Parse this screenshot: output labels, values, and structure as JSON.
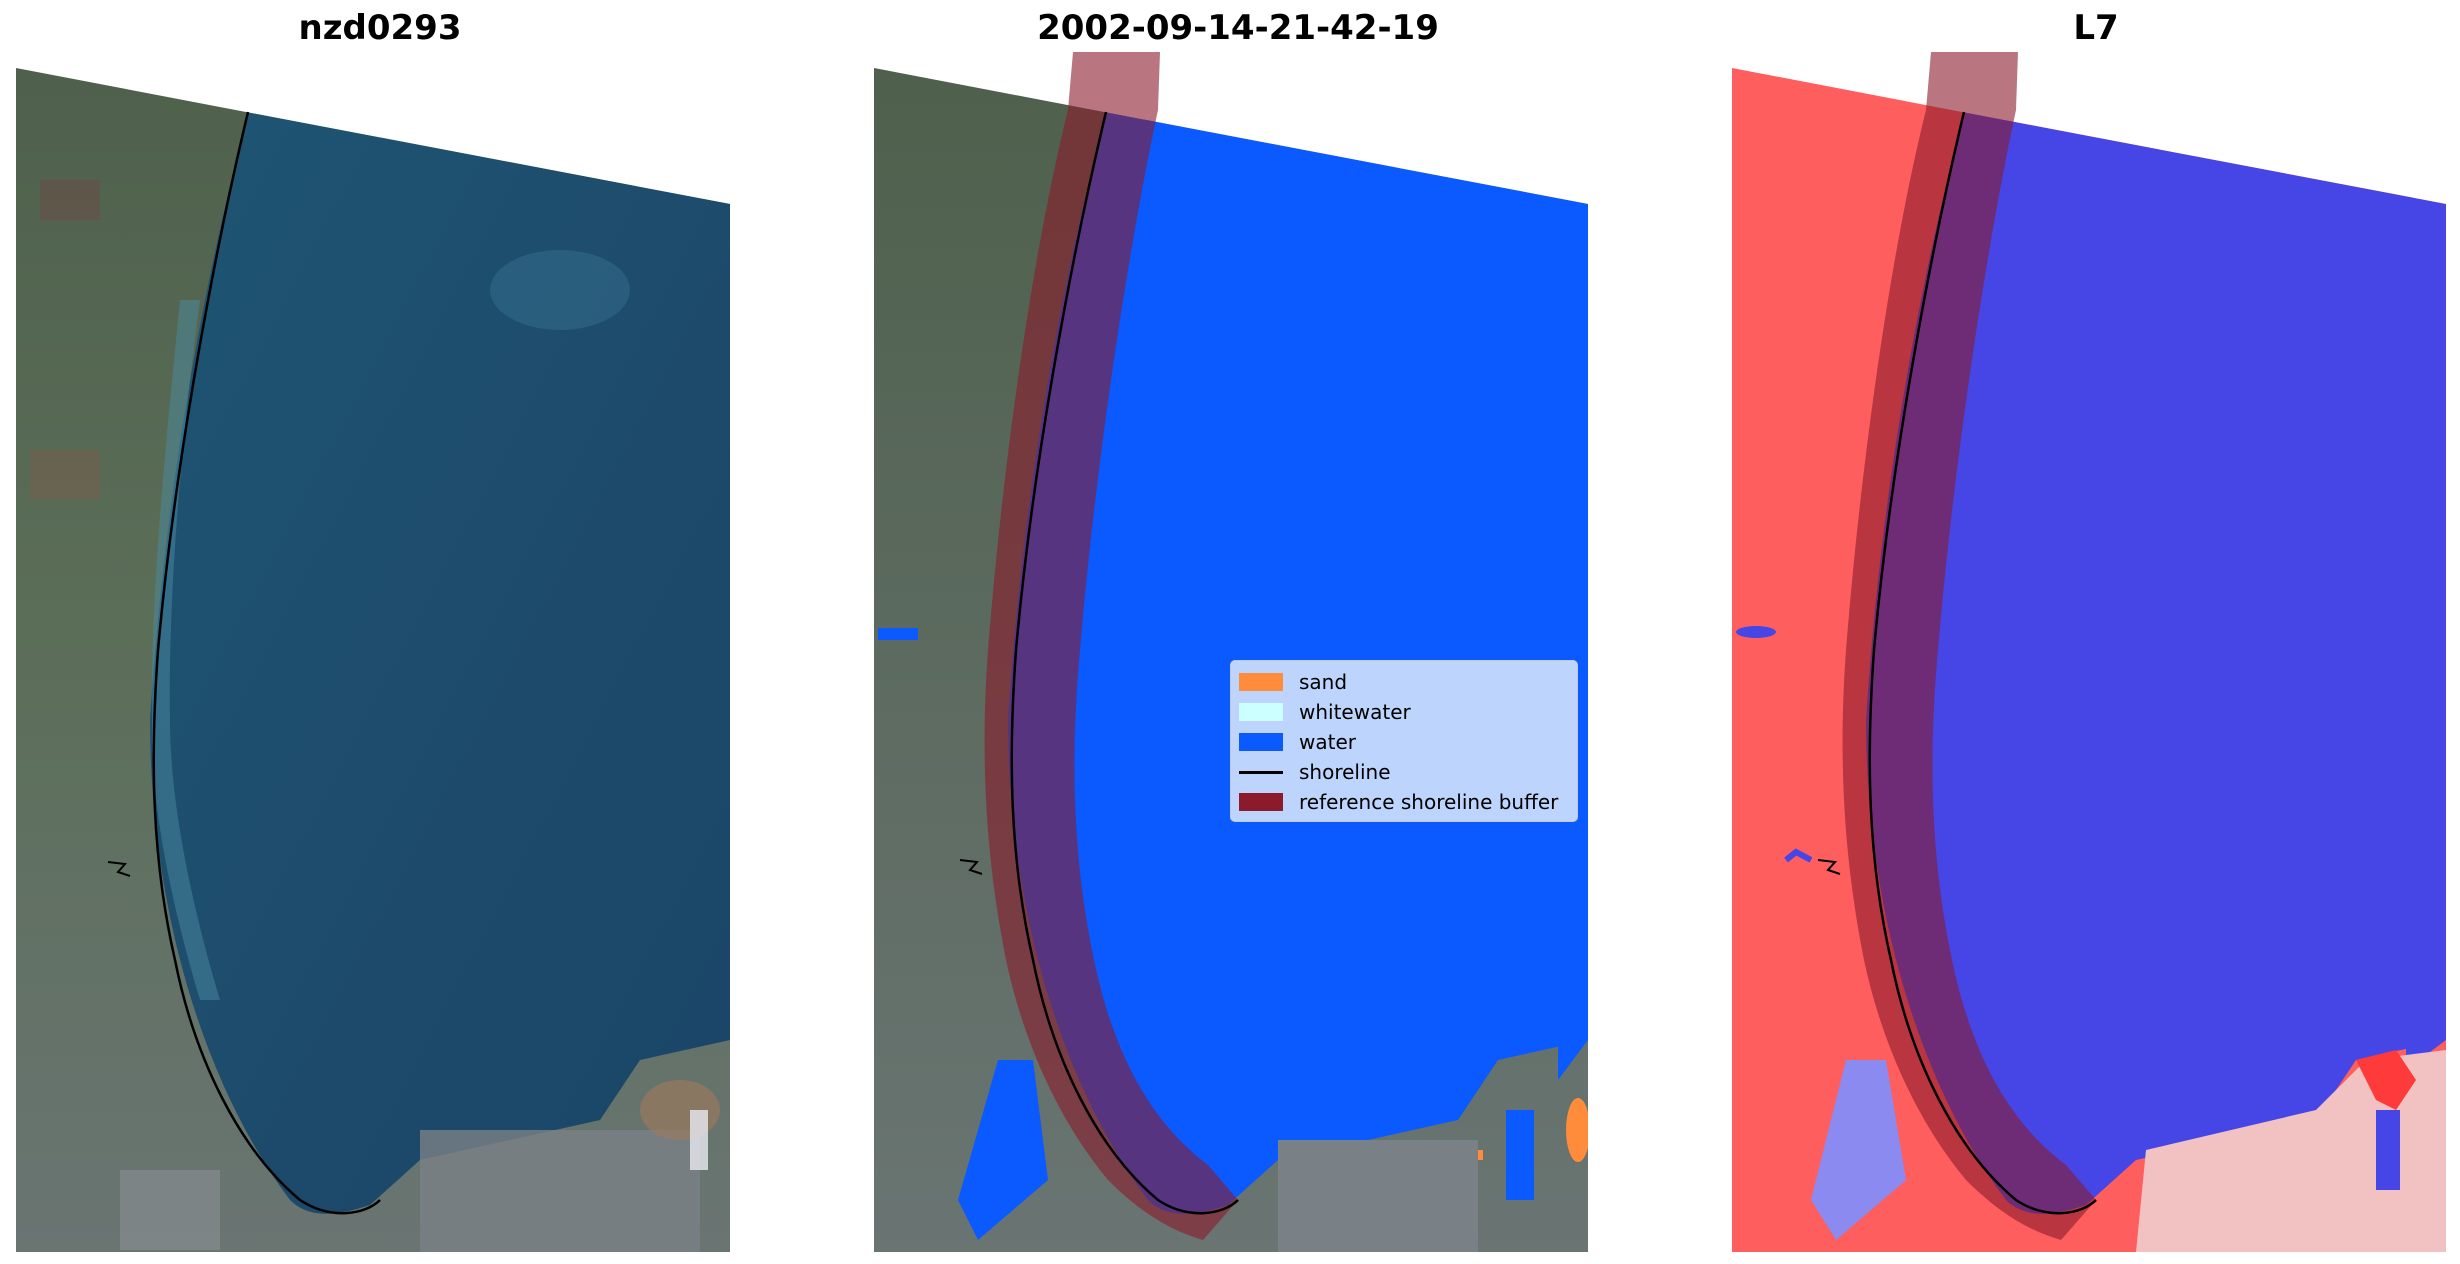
{
  "panels": [
    {
      "title": "nzd0293"
    },
    {
      "title": "2002-09-14-21-42-19"
    },
    {
      "title": "L7"
    }
  ],
  "legend": {
    "items": [
      {
        "label": "sand",
        "color": "#ff8c3a",
        "kind": "patch"
      },
      {
        "label": "whitewater",
        "color": "#ccffff",
        "kind": "patch"
      },
      {
        "label": "water",
        "color": "#0a5aff",
        "kind": "patch"
      },
      {
        "label": "shoreline",
        "color": "#000000",
        "kind": "line"
      },
      {
        "label": "reference shoreline buffer",
        "color": "#8b1a2b",
        "kind": "patch"
      }
    ]
  },
  "colors": {
    "sea_true_color": "#1f4d6e",
    "land_true_color": "#5a6e5e",
    "water_class": "#0a5aff",
    "ndwi_land": "#ff4a4a",
    "ndwi_water": "#4646e6",
    "buffer": "#8b1a2b"
  }
}
